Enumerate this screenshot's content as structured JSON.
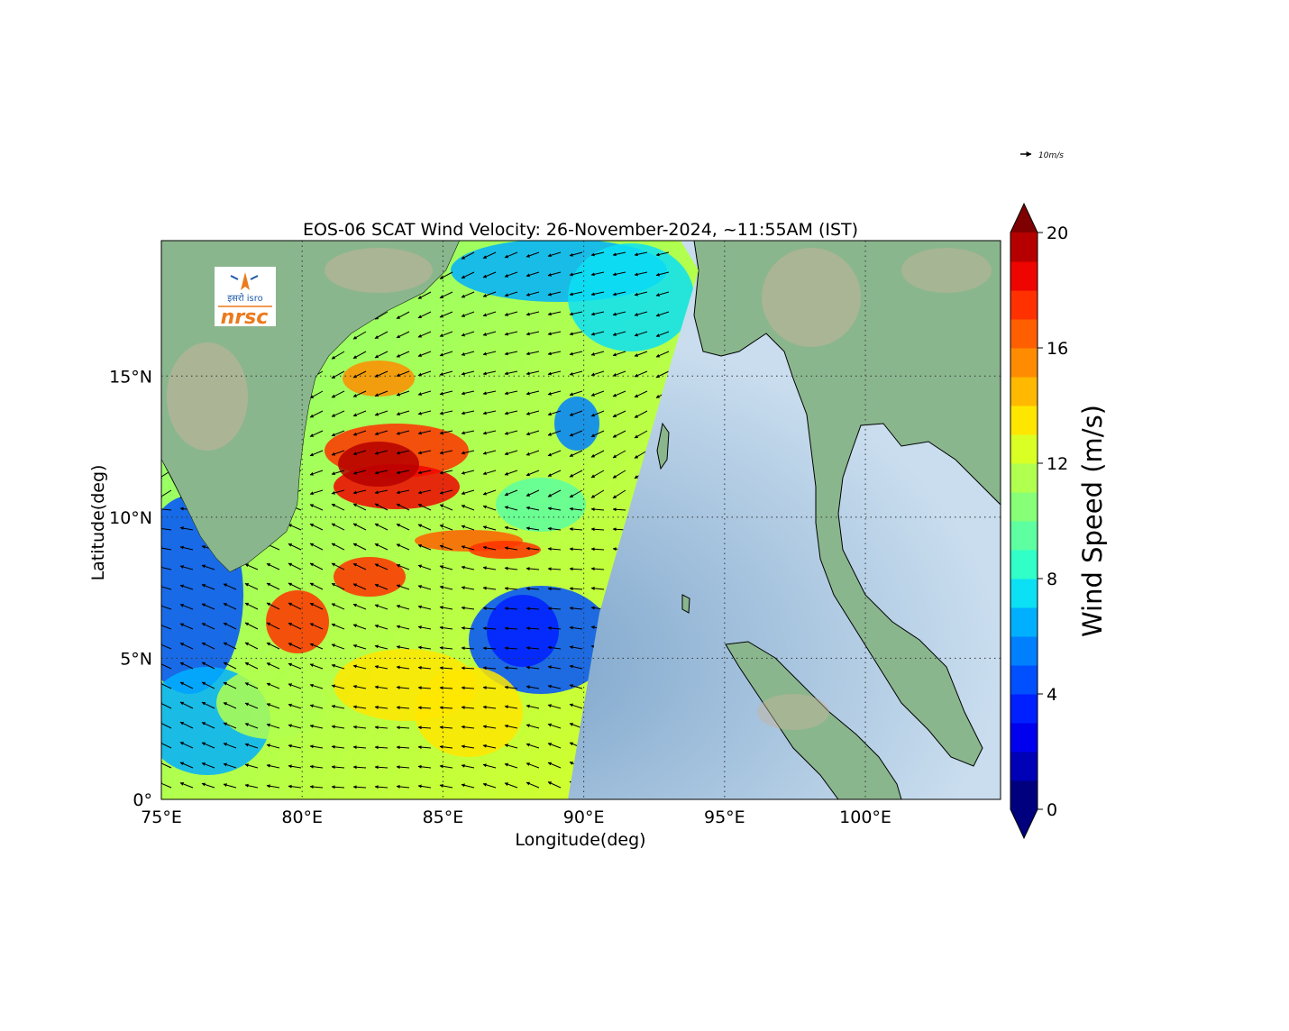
{
  "title": "EOS-06 SCAT Wind Velocity: 26-November-2024, ~11:55AM (IST)",
  "xlabel": "Longitude(deg)",
  "ylabel": "Latitude(deg)",
  "x_ticks": [
    "75°E",
    "80°E",
    "85°E",
    "90°E",
    "95°E",
    "100°E"
  ],
  "y_ticks": [
    "0°",
    "5°N",
    "10°N",
    "15°N"
  ],
  "reference_arrow": {
    "label": "10m/s",
    "value": 10
  },
  "logo": {
    "hindi_text": "इसरो isro",
    "agency": "nrsc"
  },
  "colorbar": {
    "label": "Wind Speed (m/s)",
    "ticks": [
      "0",
      "4",
      "8",
      "12",
      "16",
      "20"
    ],
    "min": 0,
    "max": 20,
    "step": 1,
    "extend": "both",
    "colors": [
      "#00007f",
      "#0000b6",
      "#0000ee",
      "#0020ff",
      "#0050ff",
      "#0080ff",
      "#00b0ff",
      "#0ce0f4",
      "#30ffc7",
      "#5dffa0",
      "#87ff77",
      "#b1ff4e",
      "#d9ff25",
      "#ffe600",
      "#ffb900",
      "#ff8c00",
      "#ff5f00",
      "#ff3100",
      "#ee0400",
      "#b60000"
    ],
    "under_color": "#00007f",
    "over_color": "#7f0000"
  },
  "map": {
    "lon_range": [
      75,
      104.8
    ],
    "lat_range": [
      0,
      19.8
    ],
    "gridlines": true,
    "colors": {
      "land": "#86b48c",
      "land_high": "#c7b49a",
      "sea": "#a9c8e2",
      "sea_deep": "#7ea6cc"
    }
  }
}
